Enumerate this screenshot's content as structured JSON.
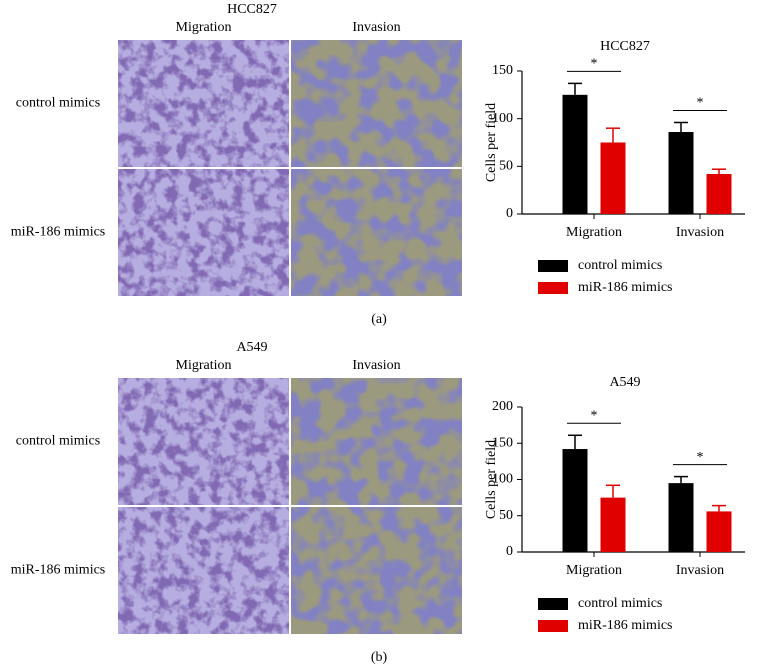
{
  "panels": [
    {
      "title": "HCC827",
      "columns": [
        "Migration",
        "Invasion"
      ],
      "rows": [
        "control mimics",
        "miR-186 mimics"
      ],
      "caption": "(a)"
    },
    {
      "title": "A549",
      "columns": [
        "Migration",
        "Invasion"
      ],
      "rows": [
        "control mimics",
        "miR-186 mimics"
      ],
      "caption": "(b)"
    }
  ],
  "chart_data": [
    {
      "type": "bar",
      "title": "HCC827",
      "y_label": "Cells per field",
      "categories": [
        "Migration",
        "Invasion"
      ],
      "series": [
        {
          "name": "control mimics",
          "color": "#000000",
          "values": [
            125,
            86
          ],
          "errors": [
            12,
            10
          ]
        },
        {
          "name": "miR-186 mimics",
          "color": "#e00000",
          "values": [
            75,
            42
          ],
          "errors": [
            15,
            5
          ]
        }
      ],
      "annotations": [
        "*",
        "*"
      ],
      "ylim": [
        0,
        150
      ],
      "yticks": [
        0,
        50,
        100,
        150
      ]
    },
    {
      "type": "bar",
      "title": "A549",
      "y_label": "Cells per field",
      "categories": [
        "Migration",
        "Invasion"
      ],
      "series": [
        {
          "name": "control mimics",
          "color": "#000000",
          "values": [
            142,
            95
          ],
          "errors": [
            19,
            9
          ]
        },
        {
          "name": "miR-186 mimics",
          "color": "#e00000",
          "values": [
            75,
            56
          ],
          "errors": [
            17,
            8
          ]
        }
      ],
      "annotations": [
        "*",
        "*"
      ],
      "ylim": [
        0,
        200
      ],
      "yticks": [
        0,
        50,
        100,
        150,
        200
      ]
    }
  ]
}
